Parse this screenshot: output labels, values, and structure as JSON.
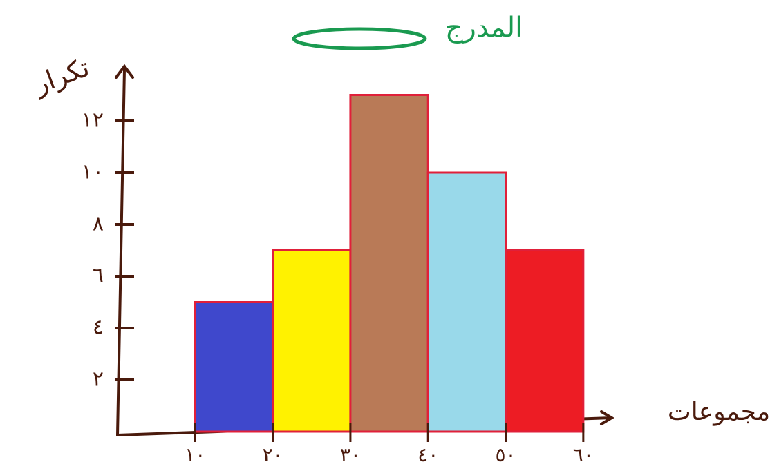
{
  "chart_data": {
    "type": "histogram",
    "title": "المدرج",
    "y_label": "تكرار",
    "x_label": "مجموعات",
    "bins": [
      10,
      20,
      30,
      40,
      50,
      60
    ],
    "values": [
      5,
      7,
      13,
      10,
      7
    ],
    "colors": [
      "#3f48cc",
      "#fff200",
      "#b97a57",
      "#99d9ea",
      "#ed1c24"
    ],
    "edgecolor": "#e0203a",
    "xlim": [
      0,
      65
    ],
    "ylim": [
      0,
      14
    ],
    "xticks": [
      {
        "value": 10,
        "label": "١٠"
      },
      {
        "value": 20,
        "label": "٢٠"
      },
      {
        "value": 30,
        "label": "٣٠"
      },
      {
        "value": 40,
        "label": "٤٠"
      },
      {
        "value": 50,
        "label": "٥٠"
      },
      {
        "value": 60,
        "label": "٦٠"
      }
    ],
    "yticks": [
      {
        "value": 2,
        "label": "٢"
      },
      {
        "value": 4,
        "label": "٤"
      },
      {
        "value": 6,
        "label": "٦"
      },
      {
        "value": 8,
        "label": "٨"
      },
      {
        "value": 10,
        "label": "١٠"
      },
      {
        "value": 12,
        "label": "١٢"
      }
    ]
  }
}
